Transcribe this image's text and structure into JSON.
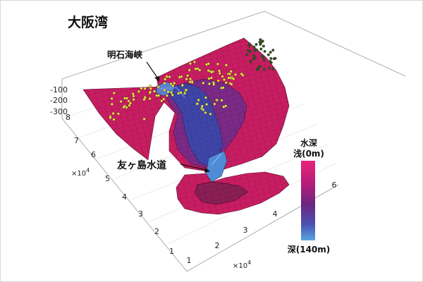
{
  "chart_data": {
    "type": "surface3d",
    "title": "大阪湾",
    "annotations": [
      "明石海峡",
      "友ヶ島水道"
    ],
    "x_ticks": [
      "1",
      "2",
      "3",
      "4",
      "5",
      "6"
    ],
    "x_multiplier": "×10",
    "x_multiplier_exp": "4",
    "y_ticks": [
      "1",
      "2",
      "3",
      "4",
      "5",
      "6",
      "7",
      "8"
    ],
    "y_multiplier": "×10",
    "y_multiplier_exp": "4",
    "z_ticks": [
      "-100",
      "-200",
      "-300"
    ],
    "z_values": [
      -100,
      -200,
      -300
    ],
    "colorbar": {
      "title": "水深",
      "top_label": "浅(0m)",
      "bottom_label": "深(140m)",
      "min_depth_m": 0,
      "max_depth_m": 140
    },
    "colors": {
      "shallow": "#d81f6f",
      "deep": "#4a8fd6",
      "points_yellow": "#f3ee3a",
      "points_green": "#33521a"
    }
  }
}
